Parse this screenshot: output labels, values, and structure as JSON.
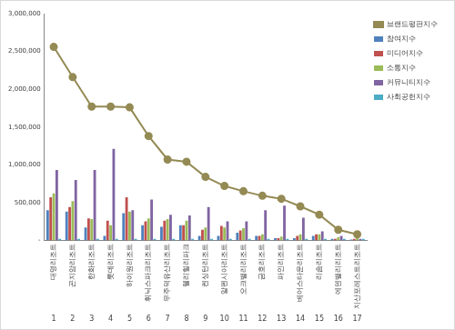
{
  "chart_data": {
    "type": "bar",
    "categories": [
      "대명리조트",
      "곤지암리조트",
      "한화리조트",
      "롯데리조트",
      "하이원리조트",
      "휘닉스파크리조트",
      "무주덕유산리조트",
      "웰리힐리파크",
      "켄싱턴리조트",
      "알펜시아리조트",
      "오크밸리리조트",
      "금호리조트",
      "파인리조트",
      "베어스타운리조트",
      "리솜리조트",
      "에덴밸리리조트",
      "지산포레스트리조트"
    ],
    "ranks": [
      1,
      2,
      3,
      4,
      5,
      6,
      7,
      8,
      9,
      10,
      11,
      12,
      13,
      14,
      15,
      16,
      17
    ],
    "series": [
      {
        "name": "참여지수",
        "color": "#4f81bd",
        "values": [
          400000,
          380000,
          170000,
          60000,
          360000,
          200000,
          180000,
          200000,
          60000,
          60000,
          100000,
          60000,
          30000,
          30000,
          60000,
          20000,
          10000
        ]
      },
      {
        "name": "미디어지수",
        "color": "#c0504d",
        "values": [
          570000,
          440000,
          290000,
          260000,
          570000,
          250000,
          260000,
          200000,
          140000,
          190000,
          130000,
          60000,
          30000,
          60000,
          80000,
          20000,
          20000
        ]
      },
      {
        "name": "소통지수",
        "color": "#9bbb59",
        "values": [
          620000,
          520000,
          280000,
          200000,
          380000,
          290000,
          280000,
          260000,
          170000,
          170000,
          160000,
          80000,
          50000,
          80000,
          80000,
          40000,
          30000
        ]
      },
      {
        "name": "커뮤니티지수",
        "color": "#8064a2",
        "values": [
          930000,
          800000,
          930000,
          1210000,
          400000,
          540000,
          340000,
          330000,
          440000,
          250000,
          250000,
          400000,
          460000,
          300000,
          120000,
          60000,
          20000
        ]
      },
      {
        "name": "사회공헌지수",
        "color": "#4bacc6",
        "values": [
          20000,
          20000,
          20000,
          20000,
          20000,
          20000,
          20000,
          20000,
          20000,
          20000,
          20000,
          20000,
          20000,
          20000,
          20000,
          20000,
          20000
        ]
      },
      {
        "name": "브랜드평판지수",
        "color": "#948a54",
        "type": "line",
        "marker": "circle",
        "values": [
          2560000,
          2160000,
          1770000,
          1770000,
          1760000,
          1380000,
          1070000,
          1040000,
          840000,
          720000,
          650000,
          590000,
          550000,
          450000,
          340000,
          140000,
          80000
        ]
      }
    ],
    "ylim": [
      0,
      3000000
    ],
    "yticks": [
      {
        "value": 0,
        "label": "-"
      },
      {
        "value": 500000,
        "label": "500,000"
      },
      {
        "value": 1000000,
        "label": "1,000,000"
      },
      {
        "value": 1500000,
        "label": "1,500,000"
      },
      {
        "value": 2000000,
        "label": "2,000,000"
      },
      {
        "value": 2500000,
        "label": "2,500,000"
      },
      {
        "value": 3000000,
        "label": "3,000,000"
      }
    ],
    "grid": false,
    "legend": "right"
  }
}
